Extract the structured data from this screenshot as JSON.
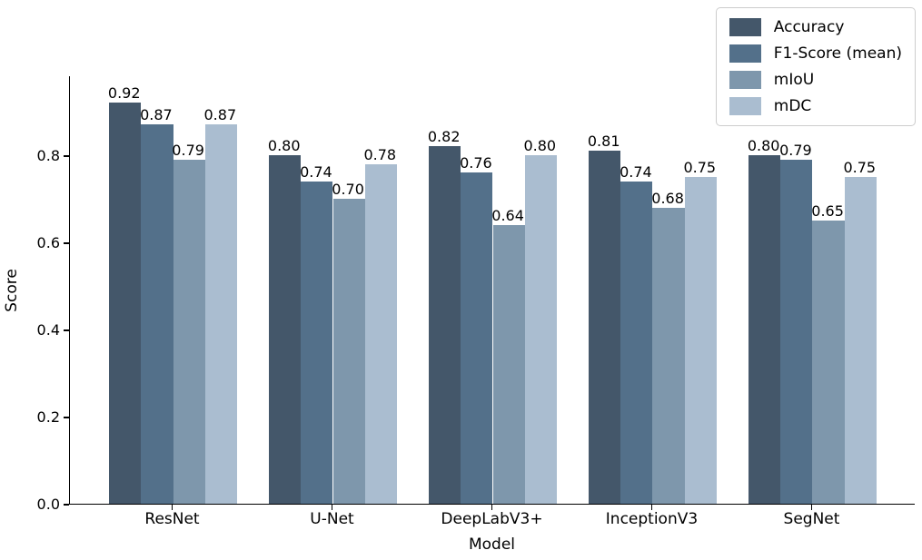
{
  "chart_data": {
    "type": "bar",
    "title": "",
    "xlabel": "Model",
    "ylabel": "Score",
    "categories": [
      "ResNet",
      "U-Net",
      "DeepLabV3+",
      "InceptionV3",
      "SegNet"
    ],
    "series": [
      {
        "name": "Accuracy",
        "color": "#44576a",
        "values": [
          0.92,
          0.8,
          0.82,
          0.81,
          0.8
        ]
      },
      {
        "name": "F1-Score (mean)",
        "color": "#53708a",
        "values": [
          0.87,
          0.74,
          0.76,
          0.74,
          0.79
        ]
      },
      {
        "name": "mIoU",
        "color": "#7e97ac",
        "values": [
          0.79,
          0.7,
          0.64,
          0.68,
          0.65
        ]
      },
      {
        "name": "mDC",
        "color": "#aabdd0",
        "values": [
          0.87,
          0.78,
          0.8,
          0.75,
          0.75
        ]
      }
    ],
    "value_labels": [
      [
        "0.92",
        "0.80",
        "0.82",
        "0.81",
        "0.80"
      ],
      [
        "0.87",
        "0.74",
        "0.76",
        "0.74",
        "0.79"
      ],
      [
        "0.79",
        "0.70",
        "0.64",
        "0.68",
        "0.65"
      ],
      [
        "0.87",
        "0.78",
        "0.80",
        "0.75",
        "0.75"
      ]
    ],
    "ylim": [
      0,
      0.9833
    ],
    "yticks": [
      0.0,
      0.2,
      0.4,
      0.6,
      0.8
    ],
    "ytick_labels": [
      "0.0",
      "0.2",
      "0.4",
      "0.6",
      "0.8"
    ],
    "grid": false,
    "legend_position": "upper right",
    "axis_color": "#000000",
    "background_color": "#ffffff"
  }
}
